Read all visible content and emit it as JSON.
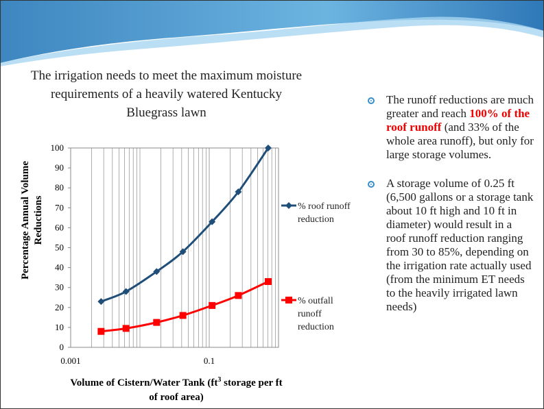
{
  "slide_title": "The irrigation needs to meet the maximum moisture requirements of a heavily watered Kentucky Bluegrass lawn",
  "bullets": [
    {
      "parts": [
        "The runoff reductions are much greater and reach ",
        "100% of the roof runoff",
        " (and 33% of the whole area runoff), but only for large storage volumes."
      ]
    },
    {
      "parts": [
        "A storage volume of 0.25 ft (6,500 gallons or a storage tank about 10 ft high and 10 ft in diameter) would result in a roof runoff reduction ranging from 30 to 85%, depending on the irrigation rate actually used (from the minimum ET needs to the heavily irrigated lawn needs)"
      ]
    }
  ],
  "chart_data": {
    "type": "line",
    "y_label": "Percentage Annual Volume Reductions",
    "x_label_parts": [
      "Volume of Cistern/Water Tank (ft",
      "3",
      " storage per ft  of roof area)"
    ],
    "x": [
      0.00275,
      0.0063,
      0.0174,
      0.0417,
      0.11,
      0.263,
      0.71
    ],
    "series": [
      {
        "name": "% roof runoff reduction",
        "color": "#1f4e79",
        "marker": "diamond",
        "values": [
          23,
          28,
          38,
          48,
          63,
          78,
          100
        ]
      },
      {
        "name": "% outfall runoff reduction",
        "color": "#ff0000",
        "marker": "square",
        "values": [
          8,
          9.5,
          12.5,
          16,
          21,
          26,
          33
        ]
      }
    ],
    "xscale": "log",
    "xlim": [
      0.001,
      1
    ],
    "xticks": [
      0.001,
      0.1
    ],
    "ylim": [
      0,
      100
    ],
    "yticks": [
      0,
      10,
      20,
      30,
      40,
      50,
      60,
      70,
      80,
      90,
      100
    ],
    "legend": "right",
    "grid": "x-minor"
  }
}
